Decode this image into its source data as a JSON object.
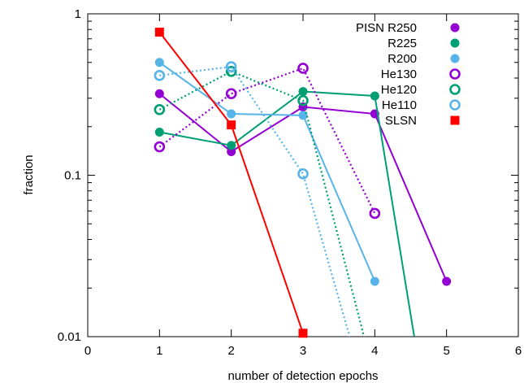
{
  "chart_data": {
    "type": "line",
    "xlabel": "number of detection epochs",
    "ylabel": "fraction",
    "xlim": [
      0,
      6
    ],
    "ylim": [
      0.01,
      1
    ],
    "yscale": "log",
    "grid": false,
    "legend_position": "top-right",
    "x_ticks": [
      {
        "value": 0,
        "label": "0"
      },
      {
        "value": 1,
        "label": "1"
      },
      {
        "value": 2,
        "label": "2"
      },
      {
        "value": 3,
        "label": "3"
      },
      {
        "value": 4,
        "label": "4"
      },
      {
        "value": 5,
        "label": "5"
      },
      {
        "value": 6,
        "label": "6"
      }
    ],
    "y_ticks": [
      {
        "value": 0.01,
        "label": "0.01"
      },
      {
        "value": 0.1,
        "label": "0.1"
      },
      {
        "value": 1,
        "label": "1"
      }
    ],
    "series": [
      {
        "name": "PISN R250",
        "color": "#9400d3",
        "marker": "filled-circle",
        "line": "solid",
        "x": [
          1,
          2,
          3,
          4,
          5
        ],
        "y": [
          0.32,
          0.14,
          0.265,
          0.24,
          0.022
        ]
      },
      {
        "name": "R225",
        "color": "#009e73",
        "marker": "filled-circle",
        "line": "solid",
        "x": [
          1,
          2,
          3,
          4,
          4.55
        ],
        "y": [
          0.185,
          0.153,
          0.33,
          0.31,
          0.01
        ]
      },
      {
        "name": "R200",
        "color": "#56b4e9",
        "marker": "filled-circle",
        "line": "solid",
        "x": [
          1,
          2,
          3,
          4
        ],
        "y": [
          0.5,
          0.24,
          0.235,
          0.022
        ]
      },
      {
        "name": "He130",
        "color": "#9400d3",
        "marker": "ring",
        "line": "dotted",
        "x": [
          1,
          2,
          3,
          4
        ],
        "y": [
          0.15,
          0.32,
          0.46,
          0.058
        ]
      },
      {
        "name": "He120",
        "color": "#009e73",
        "marker": "ring",
        "line": "dotted",
        "x": [
          1,
          2,
          3,
          3.85
        ],
        "y": [
          0.255,
          0.44,
          0.29,
          0.01
        ]
      },
      {
        "name": "He110",
        "color": "#56b4e9",
        "marker": "ring",
        "line": "dotted",
        "x": [
          1,
          2,
          3,
          3.65
        ],
        "y": [
          0.415,
          0.47,
          0.102,
          0.01
        ]
      },
      {
        "name": "SLSN",
        "color": "#ff0000",
        "marker": "filled-square",
        "line": "solid",
        "x": [
          1,
          2,
          3
        ],
        "y": [
          0.77,
          0.205,
          0.0105
        ]
      }
    ]
  }
}
